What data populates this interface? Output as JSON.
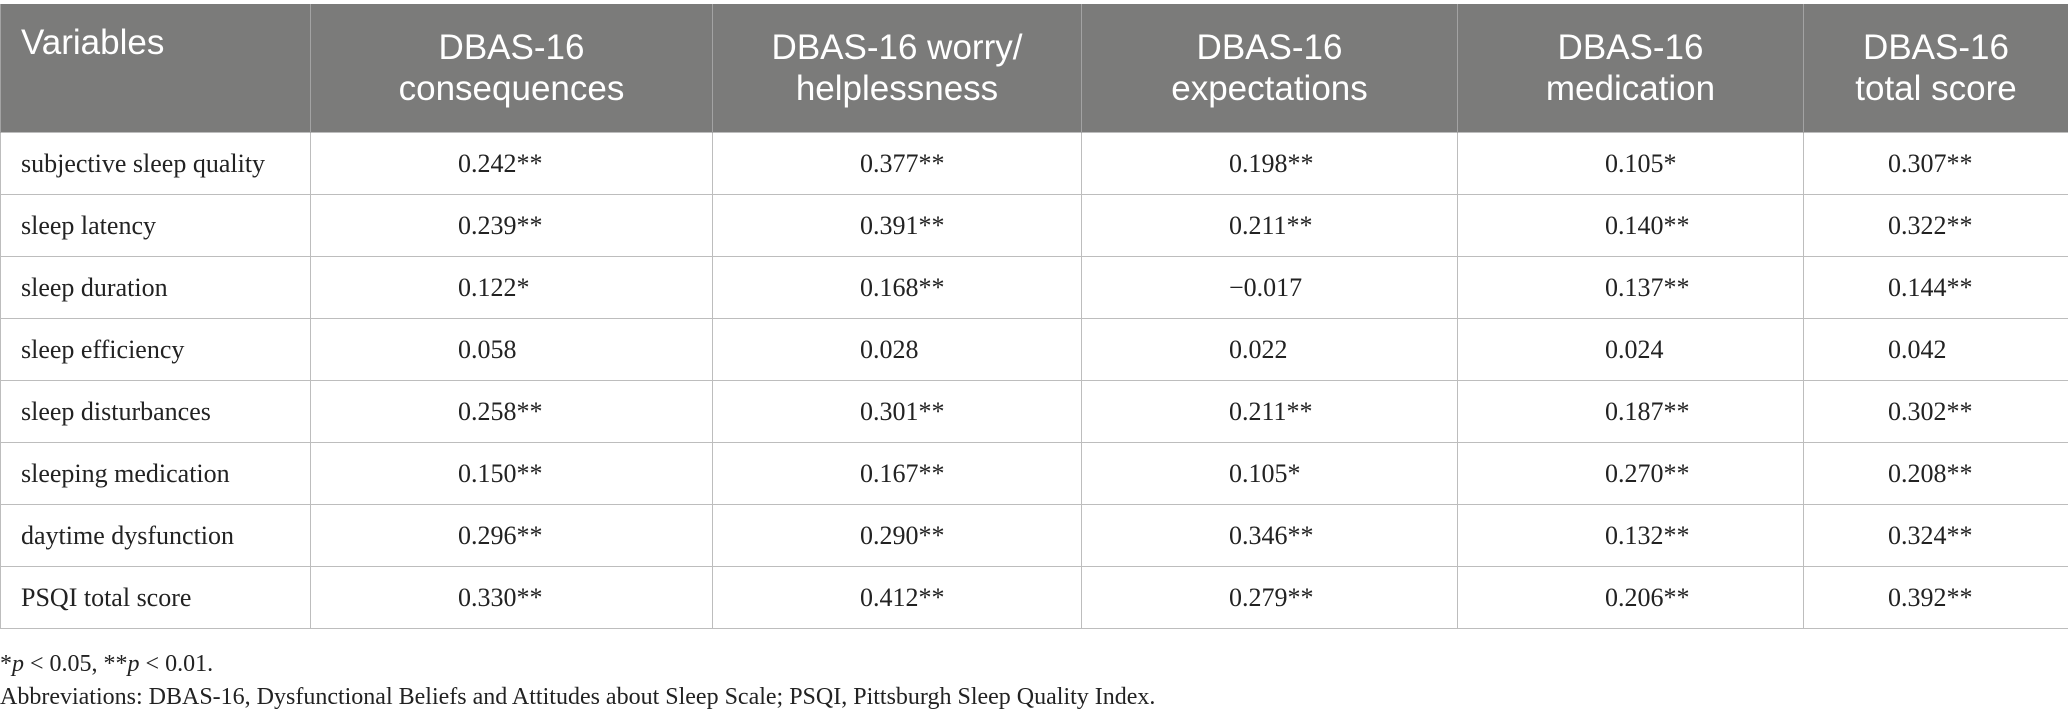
{
  "table": {
    "headers": [
      [
        "Variables"
      ],
      [
        "DBAS-16",
        "consequences"
      ],
      [
        "DBAS-16 worry/",
        "helplessness"
      ],
      [
        "DBAS-16",
        "expectations"
      ],
      [
        "DBAS-16",
        "medication"
      ],
      [
        "DBAS-16",
        "total score"
      ]
    ],
    "rows": [
      {
        "label": "subjective sleep quality",
        "values": [
          "0.242**",
          "0.377**",
          "0.198**",
          "0.105*",
          "0.307**"
        ]
      },
      {
        "label": "sleep latency",
        "values": [
          "0.239**",
          "0.391**",
          "0.211**",
          "0.140**",
          "0.322**"
        ]
      },
      {
        "label": "sleep duration",
        "values": [
          "0.122*",
          "0.168**",
          "−0.017",
          "0.137**",
          "0.144**"
        ]
      },
      {
        "label": "sleep efficiency",
        "values": [
          "0.058",
          "0.028",
          "0.022",
          "0.024",
          "0.042"
        ]
      },
      {
        "label": "sleep disturbances",
        "values": [
          "0.258**",
          "0.301**",
          "0.211**",
          "0.187**",
          "0.302**"
        ]
      },
      {
        "label": "sleeping medication",
        "values": [
          "0.150**",
          "0.167**",
          "0.105*",
          "0.270**",
          "0.208**"
        ]
      },
      {
        "label": "daytime dysfunction",
        "values": [
          "0.296**",
          "0.290**",
          "0.346**",
          "0.132**",
          "0.324**"
        ]
      },
      {
        "label": "PSQI total score",
        "values": [
          "0.330**",
          "0.412**",
          "0.279**",
          "0.206**",
          "0.392**"
        ]
      }
    ]
  },
  "footnote": {
    "sig1_star": "*",
    "sig1_p": "p",
    "sig1_rest": " < 0.05, ",
    "sig2_star": "**",
    "sig2_p": "p",
    "sig2_rest": " < 0.01.",
    "abbreviations": "Abbreviations: DBAS-16, Dysfunctional Beliefs and Attitudes about Sleep Scale; PSQI, Pittsburgh Sleep Quality Index."
  }
}
